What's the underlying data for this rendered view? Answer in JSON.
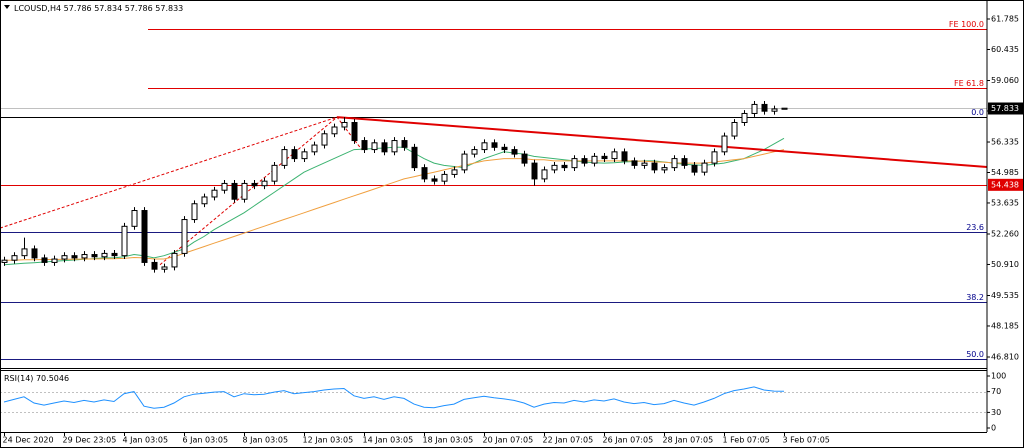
{
  "chart_data": [
    {
      "type": "candlestick",
      "symbol": "LCOUSD,H4",
      "categories": [
        "24 Dec 2020",
        null,
        null,
        null,
        null,
        null,
        "29 Dec 23:05",
        null,
        null,
        null,
        null,
        null,
        "4 Jan 03:05",
        null,
        null,
        null,
        null,
        null,
        "6 Jan 03:05",
        null,
        null,
        null,
        null,
        null,
        "8 Jan 03:05",
        null,
        null,
        null,
        null,
        null,
        "12 Jan 03:05",
        null,
        null,
        null,
        null,
        null,
        "14 Jan 03:05",
        null,
        null,
        null,
        null,
        null,
        "18 Jan 03:05",
        null,
        null,
        null,
        null,
        null,
        "20 Jan 07:05",
        null,
        null,
        null,
        null,
        null,
        "22 Jan 07:05",
        null,
        null,
        null,
        null,
        null,
        "26 Jan 07:05",
        null,
        null,
        null,
        null,
        null,
        "28 Jan 07:05",
        null,
        null,
        null,
        null,
        null,
        "1 Feb 07:05",
        null,
        null,
        null,
        null,
        null,
        "3 Feb 07:05"
      ],
      "open": [
        51.0,
        51.1,
        51.3,
        51.6,
        51.2,
        51.0,
        51.15,
        51.3,
        51.2,
        51.35,
        51.25,
        51.4,
        51.3,
        52.6,
        53.3,
        51.0,
        50.7,
        50.8,
        51.4,
        52.9,
        53.6,
        53.9,
        54.2,
        54.5,
        53.8,
        54.5,
        54.4,
        54.6,
        55.3,
        56.0,
        55.6,
        55.9,
        56.2,
        56.7,
        57.0,
        57.2,
        56.4,
        56.0,
        56.3,
        55.9,
        56.4,
        56.1,
        55.2,
        54.7,
        54.6,
        54.9,
        55.1,
        55.8,
        56.0,
        56.3,
        56.1,
        56.0,
        55.8,
        55.4,
        54.7,
        55.1,
        55.3,
        55.2,
        55.6,
        55.4,
        55.7,
        55.6,
        55.9,
        55.5,
        55.3,
        55.4,
        55.1,
        55.2,
        55.6,
        55.3,
        55.0,
        55.4,
        55.9,
        56.6,
        57.2,
        57.6,
        58.0,
        57.7,
        57.786
      ],
      "high": [
        51.25,
        51.45,
        52.1,
        51.75,
        51.35,
        51.3,
        51.45,
        51.45,
        51.5,
        51.5,
        51.55,
        51.55,
        52.75,
        53.45,
        53.45,
        51.15,
        50.95,
        51.55,
        53.05,
        53.75,
        54.05,
        54.35,
        54.65,
        54.65,
        54.65,
        54.65,
        54.75,
        55.45,
        56.15,
        56.15,
        56.05,
        56.35,
        56.85,
        57.15,
        57.44,
        57.35,
        56.55,
        56.45,
        56.45,
        56.55,
        56.55,
        56.25,
        55.35,
        54.85,
        55.05,
        55.25,
        55.95,
        56.15,
        56.45,
        56.45,
        56.25,
        56.15,
        55.95,
        55.55,
        55.25,
        55.45,
        55.45,
        55.75,
        55.75,
        55.85,
        55.85,
        56.05,
        56.05,
        55.65,
        55.55,
        55.55,
        55.35,
        55.75,
        55.75,
        55.45,
        55.55,
        56.05,
        56.75,
        57.35,
        57.75,
        58.15,
        58.15,
        57.95,
        57.834
      ],
      "low": [
        50.85,
        50.95,
        51.15,
        51.05,
        50.85,
        50.85,
        51.0,
        51.05,
        51.05,
        51.1,
        51.1,
        51.15,
        51.15,
        52.45,
        50.85,
        50.55,
        50.55,
        50.65,
        51.25,
        52.75,
        53.45,
        53.75,
        54.05,
        53.65,
        53.65,
        54.25,
        54.25,
        54.45,
        55.15,
        55.45,
        55.45,
        55.75,
        56.05,
        56.55,
        56.85,
        56.25,
        55.85,
        55.85,
        55.75,
        55.75,
        55.95,
        55.05,
        54.55,
        54.45,
        54.45,
        54.75,
        54.95,
        55.65,
        55.85,
        55.95,
        55.85,
        55.65,
        55.25,
        54.4,
        54.55,
        54.95,
        55.05,
        55.05,
        55.25,
        55.25,
        55.45,
        55.45,
        55.35,
        55.15,
        55.15,
        54.95,
        54.95,
        55.05,
        55.15,
        54.85,
        54.85,
        55.25,
        55.75,
        56.45,
        57.05,
        57.45,
        57.55,
        57.55,
        57.786
      ],
      "close": [
        51.1,
        51.3,
        51.6,
        51.2,
        51.0,
        51.15,
        51.3,
        51.2,
        51.35,
        51.25,
        51.4,
        51.3,
        52.6,
        53.3,
        51.0,
        50.7,
        50.8,
        51.4,
        52.9,
        53.6,
        53.9,
        54.2,
        54.5,
        53.8,
        54.5,
        54.4,
        54.6,
        55.3,
        56.0,
        55.6,
        55.9,
        56.2,
        56.7,
        57.0,
        57.2,
        56.4,
        56.0,
        56.3,
        55.9,
        56.4,
        56.1,
        55.2,
        54.7,
        54.6,
        54.9,
        55.1,
        55.8,
        56.0,
        56.3,
        56.1,
        56.0,
        55.8,
        55.4,
        54.7,
        55.1,
        55.3,
        55.2,
        55.6,
        55.4,
        55.7,
        55.6,
        55.9,
        55.5,
        55.3,
        55.4,
        55.1,
        55.2,
        55.6,
        55.3,
        55.0,
        55.4,
        55.9,
        56.6,
        57.2,
        57.6,
        58.0,
        57.7,
        57.8,
        57.833
      ],
      "series": [
        {
          "color": "#3cb371",
          "values": [
            50.9,
            50.93,
            50.96,
            50.99,
            51.02,
            51.05,
            51.08,
            51.11,
            51.14,
            51.17,
            51.2,
            51.2,
            51.25,
            51.35,
            51.3,
            51.2,
            51.3,
            51.45,
            51.6,
            51.9,
            52.15,
            52.45,
            52.7,
            52.95,
            53.2,
            53.5,
            53.8,
            54.1,
            54.4,
            54.7,
            55.0,
            55.2,
            55.4,
            55.6,
            55.8,
            56.0,
            56.02,
            56.05,
            56.07,
            56.1,
            56.1,
            55.85,
            55.6,
            55.4,
            55.3,
            55.25,
            55.2,
            55.4,
            55.6,
            55.75,
            55.9,
            55.85,
            55.8,
            55.7,
            55.65,
            55.6,
            55.55,
            55.5,
            55.45,
            55.42,
            55.4,
            55.42,
            55.45,
            55.47,
            55.5,
            55.5,
            55.45,
            55.4,
            55.35,
            55.32,
            55.3,
            55.35,
            55.4,
            55.5,
            55.6,
            55.8,
            56.0,
            56.25,
            56.5
          ]
        },
        {
          "color": "#f0a040",
          "values": [
            51.1,
            51.1,
            51.12,
            51.12,
            51.13,
            51.13,
            51.14,
            51.14,
            51.15,
            51.15,
            51.16,
            51.16,
            51.18,
            51.22,
            51.2,
            51.15,
            51.15,
            51.25,
            51.4,
            51.55,
            51.7,
            51.85,
            52.0,
            52.15,
            52.3,
            52.45,
            52.6,
            52.75,
            52.9,
            53.05,
            53.2,
            53.35,
            53.5,
            53.65,
            53.8,
            53.95,
            54.1,
            54.25,
            54.4,
            54.55,
            54.7,
            54.8,
            54.9,
            55.0,
            55.1,
            55.2,
            55.3,
            55.4,
            55.5,
            55.55,
            55.6,
            55.6,
            55.6,
            55.55,
            55.55,
            55.5,
            55.5,
            55.5,
            55.5,
            55.5,
            55.5,
            55.5,
            55.5,
            55.5,
            55.48,
            55.46,
            55.44,
            55.42,
            55.4,
            55.4,
            55.4,
            55.45,
            55.5,
            55.55,
            55.6,
            55.7,
            55.8,
            55.9,
            56.0
          ]
        }
      ],
      "levels": [
        {
          "value": 61.342,
          "label": "FE 100.0",
          "color": "#e00000",
          "label_color": "#e00000",
          "start": 14.4
        },
        {
          "value": 58.728,
          "label": "FE 61.8",
          "color": "#e00000",
          "label_color": "#e00000",
          "start": 14.4
        },
        {
          "value": 57.443,
          "label": "0.0",
          "color": "#000000",
          "label_color": "#00008b"
        },
        {
          "value": 54.438,
          "color": "#e00000",
          "boxed": true
        },
        {
          "value": 52.348,
          "label": "23.6",
          "color": "#1a1a80",
          "label_color": "#00008b"
        },
        {
          "value": 49.246,
          "label": "38.2",
          "color": "#1a1a80",
          "label_color": "#00008b"
        },
        {
          "value": 46.721,
          "label": "50.0",
          "color": "#1a1a80",
          "label_color": "#00008b"
        }
      ],
      "trendline": {
        "color": "#e00000",
        "x": [
          33.3,
          98.3
        ],
        "values": [
          57.44,
          55.23
        ]
      },
      "drawings": [
        {
          "color": "#e00000",
          "x": [
            -0.4,
            33.3
          ],
          "values": [
            52.52,
            57.44
          ]
        },
        {
          "color": "#e00000",
          "x": [
            15.6,
            33.3,
            35.8
          ],
          "values": [
            50.9,
            57.44,
            55.98
          ]
        }
      ],
      "ylim": [
        46.323,
        62.627
      ],
      "yticks": [
        61.785,
        60.435,
        {
          "value": 59.06,
          "label": "59.060"
        },
        {
          "value": 57.71,
          "label": "57.710"
        },
        56.335,
        54.985,
        53.635,
        {
          "value": 52.26,
          "label": "52.260"
        },
        {
          "value": 50.91,
          "label": "50.910"
        },
        49.535,
        48.185,
        {
          "value": 46.81,
          "label": "46.810"
        }
      ]
    },
    {
      "type": "line",
      "name": "RSI(14)",
      "color": "#1e90ff",
      "values": [
        50,
        55,
        60,
        48,
        44,
        48,
        52,
        49,
        53,
        50,
        54,
        51,
        66,
        70,
        42,
        38,
        40,
        48,
        60,
        65,
        67,
        69,
        70,
        60,
        66,
        64,
        65,
        69,
        72,
        66,
        68,
        70,
        73,
        75,
        76,
        62,
        57,
        60,
        55,
        60,
        57,
        46,
        40,
        39,
        43,
        46,
        55,
        58,
        61,
        58,
        56,
        53,
        48,
        40,
        46,
        49,
        48,
        53,
        50,
        54,
        52,
        56,
        50,
        47,
        49,
        45,
        47,
        53,
        48,
        44,
        50,
        57,
        66,
        72,
        75,
        79,
        73,
        71,
        70.5046
      ],
      "ylim": [
        0,
        100
      ],
      "yticks": [
        100,
        70,
        30,
        0
      ],
      "levels": [
        70,
        30
      ]
    }
  ]
}
